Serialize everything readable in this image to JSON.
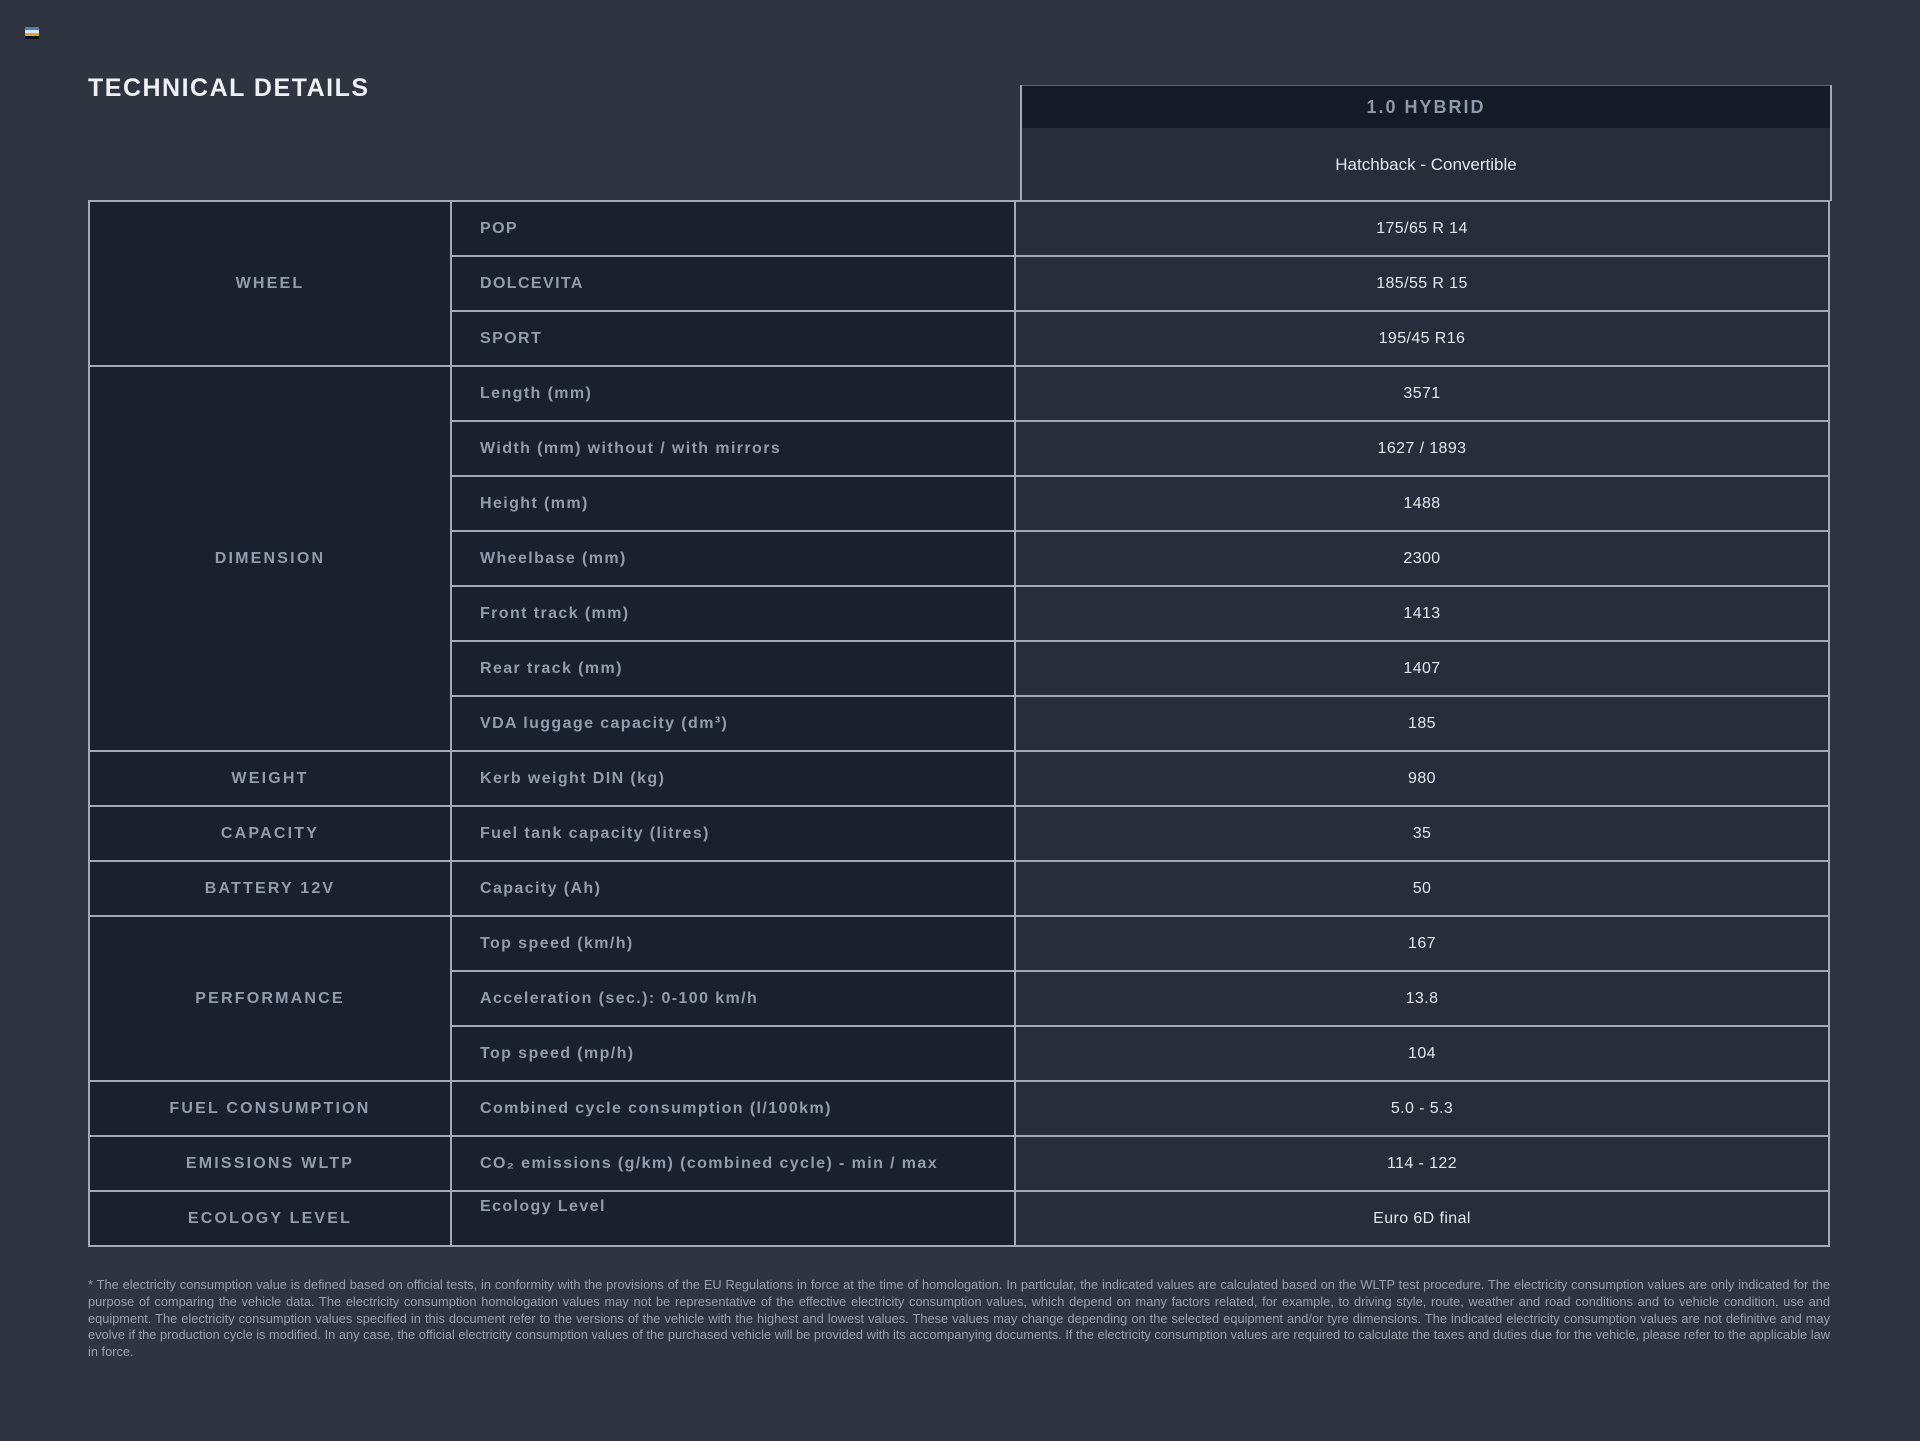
{
  "page": {
    "title": "TECHNICAL DETAILS"
  },
  "brand": {
    "icon": "flag-icon",
    "stripe_colors": [
      "#4d7fc0",
      "#dfe3e7",
      "#dba73b",
      "#0d1118"
    ]
  },
  "theme": {
    "page_bg": "#2e3541",
    "cell_dark_bg": "#1a202e",
    "cell_value_bg": "#272d3a",
    "header_bar_bg": "#141a26",
    "border_line": "#a2aab6"
  },
  "header": {
    "engine": "1.0 HYBRID",
    "body_styles": "Hatchback - Convertible"
  },
  "table": {
    "groups": [
      {
        "category": "WHEEL",
        "rows": [
          {
            "label": "POP",
            "value": "175/65 R 14"
          },
          {
            "label": "DOLCEVITA",
            "value": "185/55 R 15"
          },
          {
            "label": "SPORT",
            "value": "195/45 R16"
          }
        ]
      },
      {
        "category": "DIMENSION",
        "rows": [
          {
            "label": "Length (mm)",
            "value": "3571"
          },
          {
            "label": "Width (mm) without / with mirrors",
            "value": "1627 / 1893"
          },
          {
            "label": "Height (mm)",
            "value": "1488"
          },
          {
            "label": "Wheelbase (mm)",
            "value": "2300"
          },
          {
            "label": "Front track (mm)",
            "value": "1413"
          },
          {
            "label": "Rear track (mm)",
            "value": "1407"
          },
          {
            "label": "VDA luggage capacity (dm³)",
            "value": "185"
          }
        ]
      },
      {
        "category": "WEIGHT",
        "rows": [
          {
            "label": "Kerb weight DIN (kg)",
            "value": "980"
          }
        ]
      },
      {
        "category": "CAPACITY",
        "rows": [
          {
            "label": "Fuel tank capacity (litres)",
            "value": "35"
          }
        ]
      },
      {
        "category": "BATTERY 12V",
        "rows": [
          {
            "label": "Capacity (Ah)",
            "value": "50"
          }
        ]
      },
      {
        "category": "PERFORMANCE",
        "rows": [
          {
            "label": "Top speed (km/h)",
            "value": "167"
          },
          {
            "label": "Acceleration (sec.): 0-100 km/h",
            "value": "13.8"
          },
          {
            "label": "Top speed (mp/h)",
            "value": "104"
          }
        ]
      },
      {
        "category": "FUEL CONSUMPTION",
        "rows": [
          {
            "label": "Combined cycle consumption (l/100km)",
            "value": "5.0 - 5.3"
          }
        ]
      },
      {
        "category": "EMISSIONS WLTP",
        "rows": [
          {
            "label": "CO₂ emissions (g/km) (combined cycle) - min / max",
            "value": "114 - 122"
          }
        ]
      },
      {
        "category": "ECOLOGY LEVEL",
        "rows": [
          {
            "label": "Ecology Level",
            "value": "Euro 6D final"
          }
        ]
      }
    ]
  },
  "footnote": {
    "text": "* The electricity consumption value is defined based on official tests, in conformity with the provisions of the EU Regulations in force at the time of homologation. In particular, the indicated values are calculated based on the WLTP test procedure. The electricity consumption values are only indicated for the purpose of comparing the vehicle data. The electricity consumption homologation values may not be representative of the effective electricity consumption values, which depend on many factors related, for example, to driving style, route, weather and road conditions and to vehicle condition, use and equipment. The electricity consumption values specified in this document refer to the versions of the vehicle with the highest and lowest values. These values may change depending on the selected equipment and/or tyre dimensions. The indicated electricity consumption values are not definitive and may evolve if the production cycle is modified. In any case, the official electricity consumption values of the purchased vehicle will be provided with its accompanying documents. If the electricity consumption values are required to calculate the taxes and duties due for the vehicle, please refer to the applicable law in force."
  }
}
